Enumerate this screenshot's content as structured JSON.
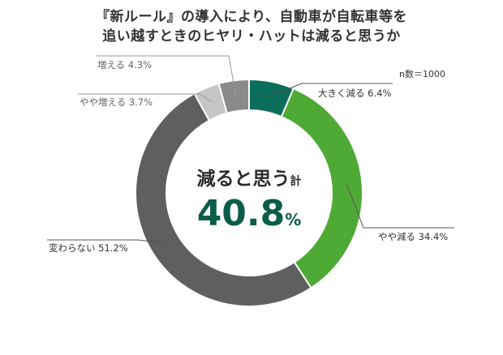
{
  "title_line1": "『新ルール』の導入により、自動車が自転車等を",
  "title_line2": "追い越すときのヒヤリ・ハットは減ると思うか",
  "sample_note": "n数＝1000",
  "center": {
    "label": "減ると思う",
    "suffix": "計",
    "value": "40.8",
    "unit": "%"
  },
  "chart_data": {
    "type": "pie",
    "donut": true,
    "title": "『新ルール』の導入により、自動車が自転車等を追い越すときのヒヤリ・ハットは減ると思うか",
    "note": "n数＝1000",
    "categories": [
      "大きく減る",
      "やや減る",
      "変わらない",
      "やや増える",
      "増える"
    ],
    "values": [
      6.4,
      34.4,
      51.2,
      3.7,
      4.3
    ],
    "labels": [
      "大きく減る 6.4%",
      "やや減る 34.4%",
      "変わらない 51.2%",
      "やや増える 3.7%",
      "増える 4.3%"
    ],
    "colors": [
      "#0b6e5a",
      "#4faa35",
      "#5f5f5f",
      "#c5c5c5",
      "#8a8a8a"
    ],
    "start": "12 o'clock",
    "direction": "clockwise",
    "legend": "none"
  }
}
